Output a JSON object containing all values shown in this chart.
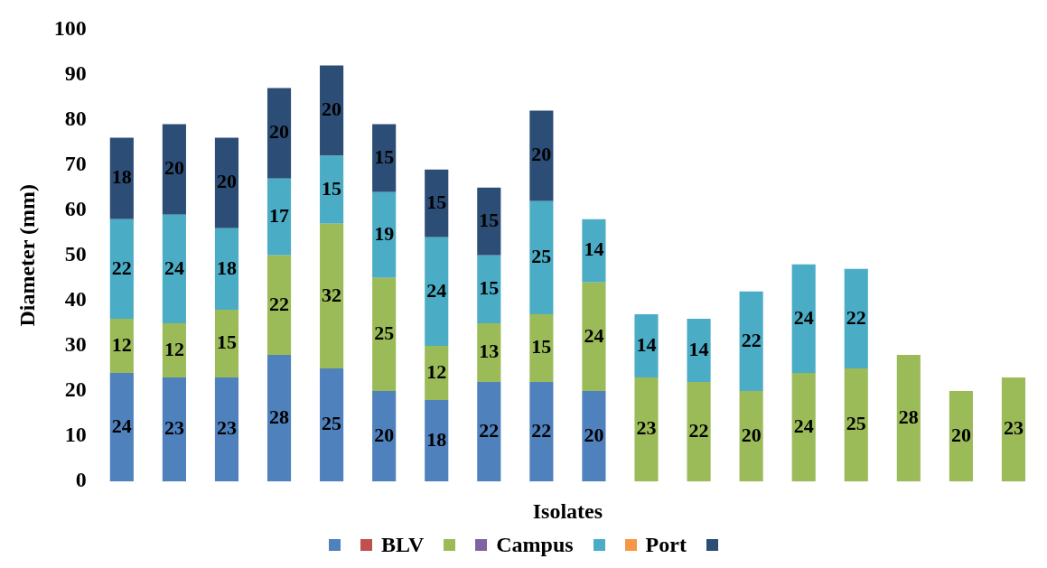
{
  "chart_data": {
    "type": "bar",
    "stacked": true,
    "xlabel": "Isolates",
    "ylabel": "Diameter (mm)",
    "ylim": [
      0,
      100
    ],
    "yticks": [
      0,
      10,
      20,
      30,
      40,
      50,
      60,
      70,
      80,
      90,
      100
    ],
    "grid": false,
    "legend": "bottom",
    "data_labels": true,
    "categories": [
      null,
      null,
      null,
      null,
      null,
      null,
      null,
      null,
      null,
      null,
      null,
      null,
      null,
      null,
      null,
      null,
      null,
      null
    ],
    "series": [
      {
        "color": "#4f81bd",
        "values": [
          24,
          23,
          23,
          28,
          25,
          20,
          18,
          22,
          22,
          20,
          null,
          null,
          null,
          null,
          null,
          null,
          null,
          null
        ]
      },
      {
        "name": "BLV",
        "color": "#c0504d",
        "values": [
          null,
          null,
          null,
          null,
          null,
          null,
          null,
          null,
          null,
          null,
          null,
          null,
          null,
          null,
          null,
          null,
          null,
          null
        ]
      },
      {
        "color": "#9bbb59",
        "values": [
          12,
          12,
          15,
          22,
          32,
          25,
          12,
          13,
          15,
          24,
          23,
          22,
          20,
          24,
          25,
          28,
          20,
          23
        ]
      },
      {
        "name": "Campus",
        "color": "#8064a2",
        "values": [
          null,
          null,
          null,
          null,
          null,
          null,
          null,
          null,
          null,
          null,
          null,
          null,
          null,
          null,
          null,
          null,
          null,
          null
        ]
      },
      {
        "color": "#4bacc6",
        "values": [
          22,
          24,
          18,
          17,
          15,
          19,
          24,
          15,
          25,
          14,
          14,
          14,
          22,
          24,
          22,
          null,
          null,
          null
        ]
      },
      {
        "name": "Port",
        "color": "#f79646",
        "values": [
          null,
          null,
          null,
          null,
          null,
          null,
          null,
          null,
          null,
          null,
          null,
          null,
          null,
          null,
          null,
          null,
          null,
          null
        ]
      },
      {
        "color": "#2c4d75",
        "values": [
          18,
          20,
          20,
          20,
          20,
          15,
          15,
          15,
          20,
          null,
          null,
          null,
          null,
          null,
          null,
          null,
          null,
          null
        ]
      }
    ]
  }
}
